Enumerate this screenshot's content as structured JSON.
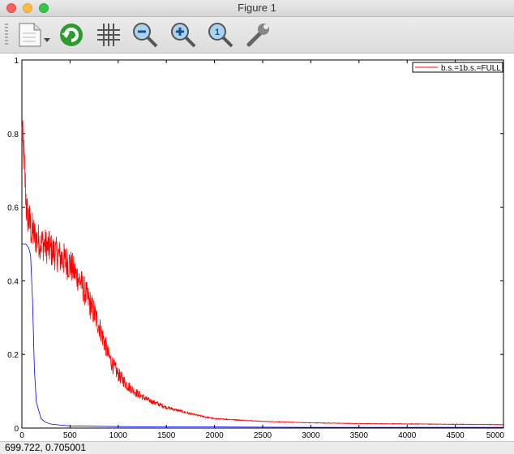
{
  "window": {
    "title": "Figure 1"
  },
  "toolbar": {
    "buttons": [
      {
        "name": "new-document-icon"
      },
      {
        "name": "refresh-icon"
      },
      {
        "name": "grid-icon"
      },
      {
        "name": "zoom-out-icon"
      },
      {
        "name": "zoom-in-icon"
      },
      {
        "name": "zoom-reset-icon"
      },
      {
        "name": "wrench-icon"
      }
    ],
    "zoom_reset_glyph": "1"
  },
  "status": {
    "coords": "699.722,  0.705001"
  },
  "chart_data": {
    "type": "line",
    "title": "",
    "xlabel": "",
    "ylabel": "",
    "xlim": [
      0,
      5000
    ],
    "ylim": [
      0,
      1
    ],
    "xticks": [
      0,
      500,
      1000,
      1500,
      2000,
      2500,
      3000,
      3500,
      4000,
      4500,
      5000
    ],
    "yticks": [
      0,
      0.2,
      0.4,
      0.6,
      0.8,
      1
    ],
    "grid": false,
    "legend_position": "top-right",
    "legend_text": "b.s.=1b.s.=FULL",
    "series": [
      {
        "color": "#ff0000",
        "noisy": true,
        "x": [
          0,
          20,
          50,
          100,
          150,
          200,
          250,
          300,
          350,
          400,
          450,
          500,
          550,
          600,
          650,
          700,
          750,
          800,
          850,
          900,
          950,
          1000,
          1100,
          1200,
          1300,
          1400,
          1500,
          1600,
          1800,
          2000,
          2500,
          3000,
          3500,
          4000,
          4500,
          5000
        ],
        "y": [
          0.78,
          0.72,
          0.57,
          0.52,
          0.5,
          0.49,
          0.48,
          0.47,
          0.46,
          0.45,
          0.44,
          0.43,
          0.41,
          0.39,
          0.36,
          0.33,
          0.3,
          0.27,
          0.23,
          0.19,
          0.16,
          0.14,
          0.11,
          0.09,
          0.075,
          0.065,
          0.055,
          0.048,
          0.035,
          0.025,
          0.018,
          0.014,
          0.012,
          0.011,
          0.01,
          0.009
        ],
        "noise_amp": [
          0.08,
          0.08,
          0.07,
          0.07,
          0.06,
          0.06,
          0.06,
          0.06,
          0.06,
          0.06,
          0.06,
          0.06,
          0.05,
          0.05,
          0.05,
          0.05,
          0.05,
          0.04,
          0.04,
          0.03,
          0.03,
          0.025,
          0.02,
          0.015,
          0.01,
          0.008,
          0.006,
          0.005,
          0.003,
          0.002,
          0.001,
          0.001,
          0.001,
          0.001,
          0.001,
          0.001
        ]
      },
      {
        "color": "#0000ff",
        "noisy": false,
        "x": [
          0,
          40,
          70,
          90,
          110,
          130,
          150,
          200,
          250,
          300,
          400,
          500,
          700,
          1000,
          1500,
          2000,
          3000,
          4000,
          5000
        ],
        "y": [
          0.5,
          0.5,
          0.49,
          0.47,
          0.35,
          0.16,
          0.07,
          0.025,
          0.015,
          0.011,
          0.008,
          0.006,
          0.005,
          0.004,
          0.003,
          0.003,
          0.002,
          0.002,
          0.002
        ]
      }
    ]
  }
}
